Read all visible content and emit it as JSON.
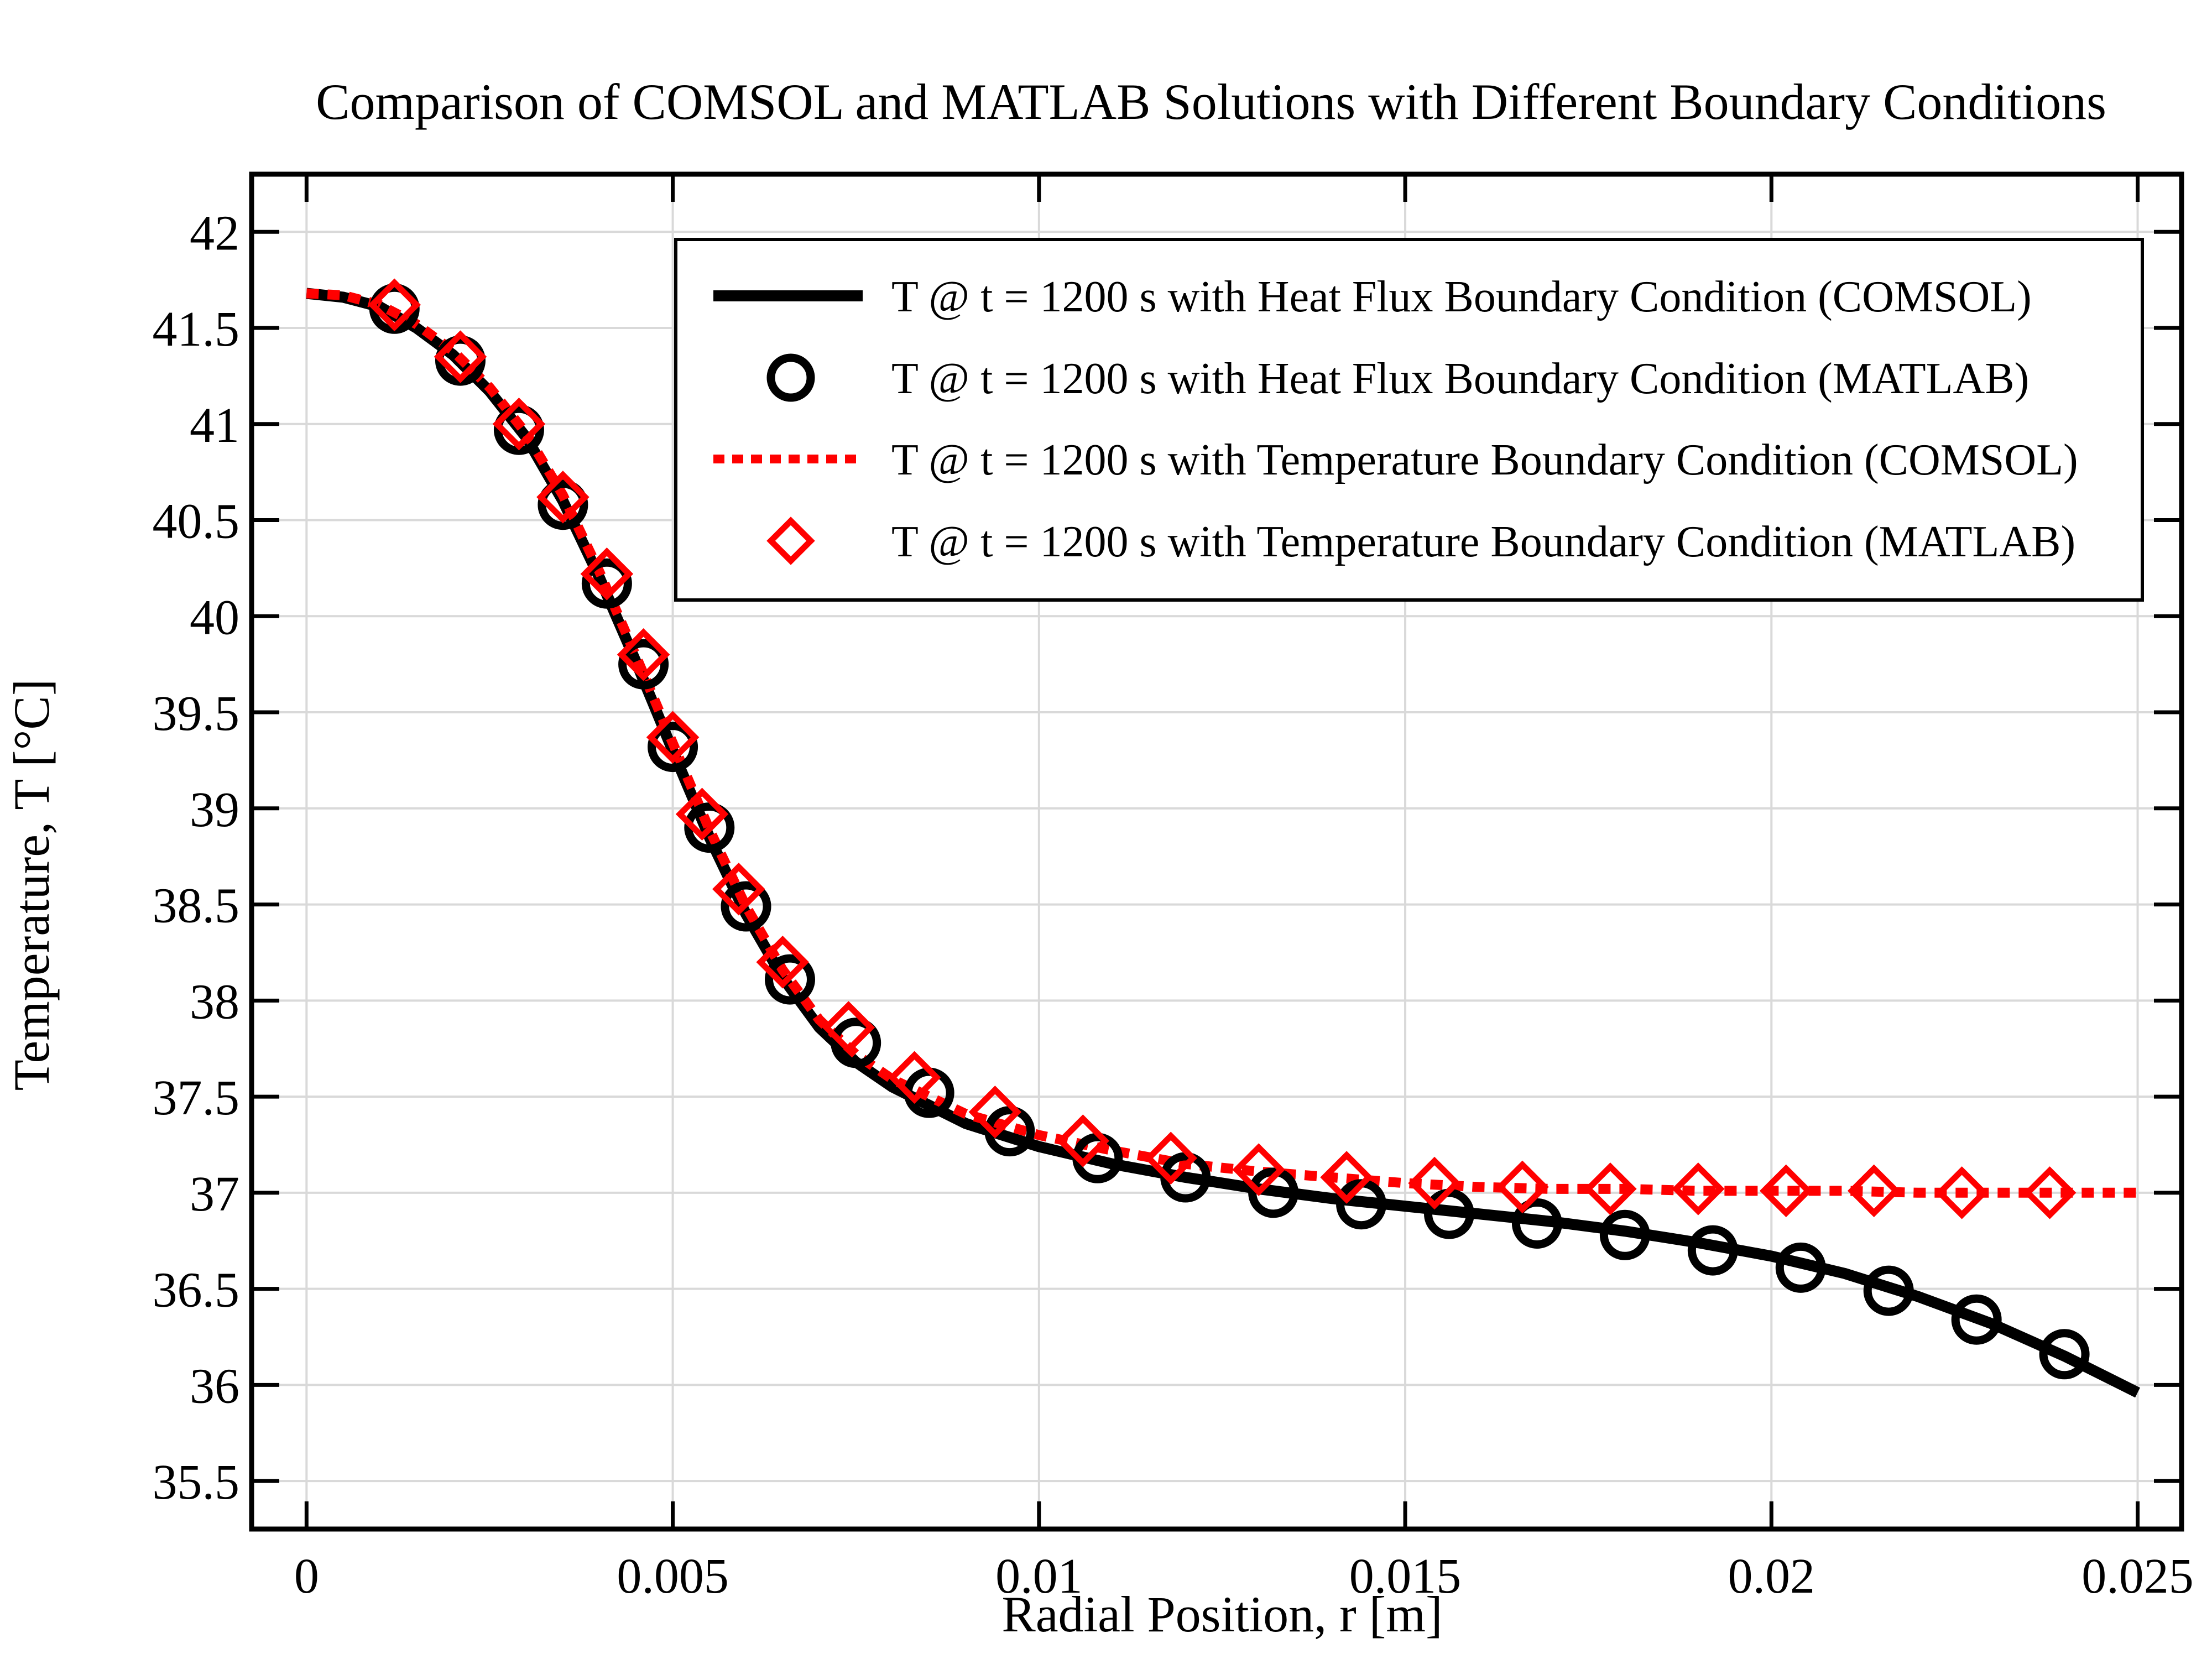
{
  "chart_data": {
    "type": "line",
    "title": "Comparison of COMSOL and MATLAB Solutions with Different Boundary Conditions",
    "xlabel": "Radial Position, r [m]",
    "ylabel": "Temperature, T [°C]",
    "xlim": [
      -0.00075,
      0.0256
    ],
    "ylim": [
      35.25,
      42.3
    ],
    "xticks": [
      0,
      0.005,
      0.01,
      0.015,
      0.02,
      0.025
    ],
    "xtick_labels": [
      "0",
      "0.005",
      "0.01",
      "0.015",
      "0.02",
      "0.025"
    ],
    "yticks": [
      35.5,
      36,
      36.5,
      37,
      37.5,
      38,
      38.5,
      39,
      39.5,
      40,
      40.5,
      41,
      41.5,
      42
    ],
    "ytick_labels": [
      "35.5",
      "36",
      "36.5",
      "37",
      "37.5",
      "38",
      "38.5",
      "39",
      "39.5",
      "40",
      "40.5",
      "41",
      "41.5",
      "42"
    ],
    "grid": true,
    "legend_position": "top-right",
    "series": [
      {
        "name": "T @ t = 1200 s with Heat Flux Boundary Condition (COMSOL)",
        "style": "solid-line",
        "color": "#000000",
        "x": [
          0,
          0.0005,
          0.001,
          0.0015,
          0.002,
          0.0025,
          0.003,
          0.0035,
          0.004,
          0.0045,
          0.005,
          0.0055,
          0.006,
          0.0065,
          0.007,
          0.0075,
          0.008,
          0.009,
          0.01,
          0.011,
          0.012,
          0.013,
          0.014,
          0.015,
          0.016,
          0.017,
          0.018,
          0.019,
          0.02,
          0.021,
          0.022,
          0.023,
          0.024,
          0.025
        ],
        "y": [
          41.68,
          41.66,
          41.61,
          41.5,
          41.36,
          41.17,
          40.93,
          40.6,
          40.2,
          39.76,
          39.3,
          38.85,
          38.45,
          38.12,
          37.86,
          37.68,
          37.55,
          37.36,
          37.24,
          37.15,
          37.08,
          37.02,
          36.97,
          36.93,
          36.89,
          36.85,
          36.8,
          36.74,
          36.67,
          36.58,
          36.46,
          36.32,
          36.15,
          35.96
        ]
      },
      {
        "name": "T @ t = 1200 s with Heat Flux Boundary Condition (MATLAB)",
        "style": "circle-marker",
        "color": "#000000",
        "x": [
          0.0012,
          0.0021,
          0.0029,
          0.0035,
          0.0041,
          0.0046,
          0.005,
          0.0055,
          0.006,
          0.0066,
          0.0075,
          0.0085,
          0.0096,
          0.0108,
          0.012,
          0.0132,
          0.0144,
          0.0156,
          0.0168,
          0.018,
          0.0192,
          0.0204,
          0.0216,
          0.0228,
          0.024
        ],
        "y": [
          41.6,
          41.33,
          40.97,
          40.58,
          40.17,
          39.75,
          39.32,
          38.9,
          38.49,
          38.11,
          37.78,
          37.52,
          37.32,
          37.18,
          37.08,
          37.0,
          36.94,
          36.89,
          36.84,
          36.78,
          36.7,
          36.61,
          36.49,
          36.34,
          36.16
        ]
      },
      {
        "name": "T @ t = 1200 s with Temperature Boundary Condition (COMSOL)",
        "style": "dotted-line",
        "color": "#ff0000",
        "x": [
          0,
          0.0005,
          0.001,
          0.0015,
          0.002,
          0.0025,
          0.003,
          0.0035,
          0.004,
          0.0045,
          0.005,
          0.0055,
          0.006,
          0.0065,
          0.007,
          0.0075,
          0.008,
          0.009,
          0.01,
          0.011,
          0.012,
          0.013,
          0.014,
          0.015,
          0.016,
          0.017,
          0.018,
          0.019,
          0.02,
          0.021,
          0.022,
          0.023,
          0.024,
          0.025
        ],
        "y": [
          41.68,
          41.67,
          41.62,
          41.52,
          41.38,
          41.19,
          40.95,
          40.63,
          40.23,
          39.79,
          39.34,
          38.89,
          38.49,
          38.16,
          37.9,
          37.72,
          37.59,
          37.41,
          37.3,
          37.22,
          37.15,
          37.11,
          37.08,
          37.05,
          37.03,
          37.02,
          37.02,
          37.01,
          37.01,
          37.01,
          37.0,
          37.0,
          37.0,
          37.0
        ]
      },
      {
        "name": "T @ t = 1200 s with Temperature Boundary Condition (MATLAB)",
        "style": "diamond-marker",
        "color": "#ff0000",
        "x": [
          0.0012,
          0.0021,
          0.0029,
          0.0035,
          0.0041,
          0.0046,
          0.005,
          0.0054,
          0.0059,
          0.0065,
          0.0074,
          0.0083,
          0.0094,
          0.0106,
          0.0118,
          0.013,
          0.0142,
          0.0154,
          0.0166,
          0.0178,
          0.019,
          0.0202,
          0.0214,
          0.0226,
          0.0238
        ],
        "y": [
          41.62,
          41.35,
          41.0,
          40.62,
          40.22,
          39.8,
          39.37,
          38.97,
          38.58,
          38.2,
          37.86,
          37.6,
          37.42,
          37.27,
          37.18,
          37.12,
          37.08,
          37.05,
          37.03,
          37.02,
          37.02,
          37.01,
          37.01,
          37.0,
          37.0
        ]
      }
    ]
  }
}
